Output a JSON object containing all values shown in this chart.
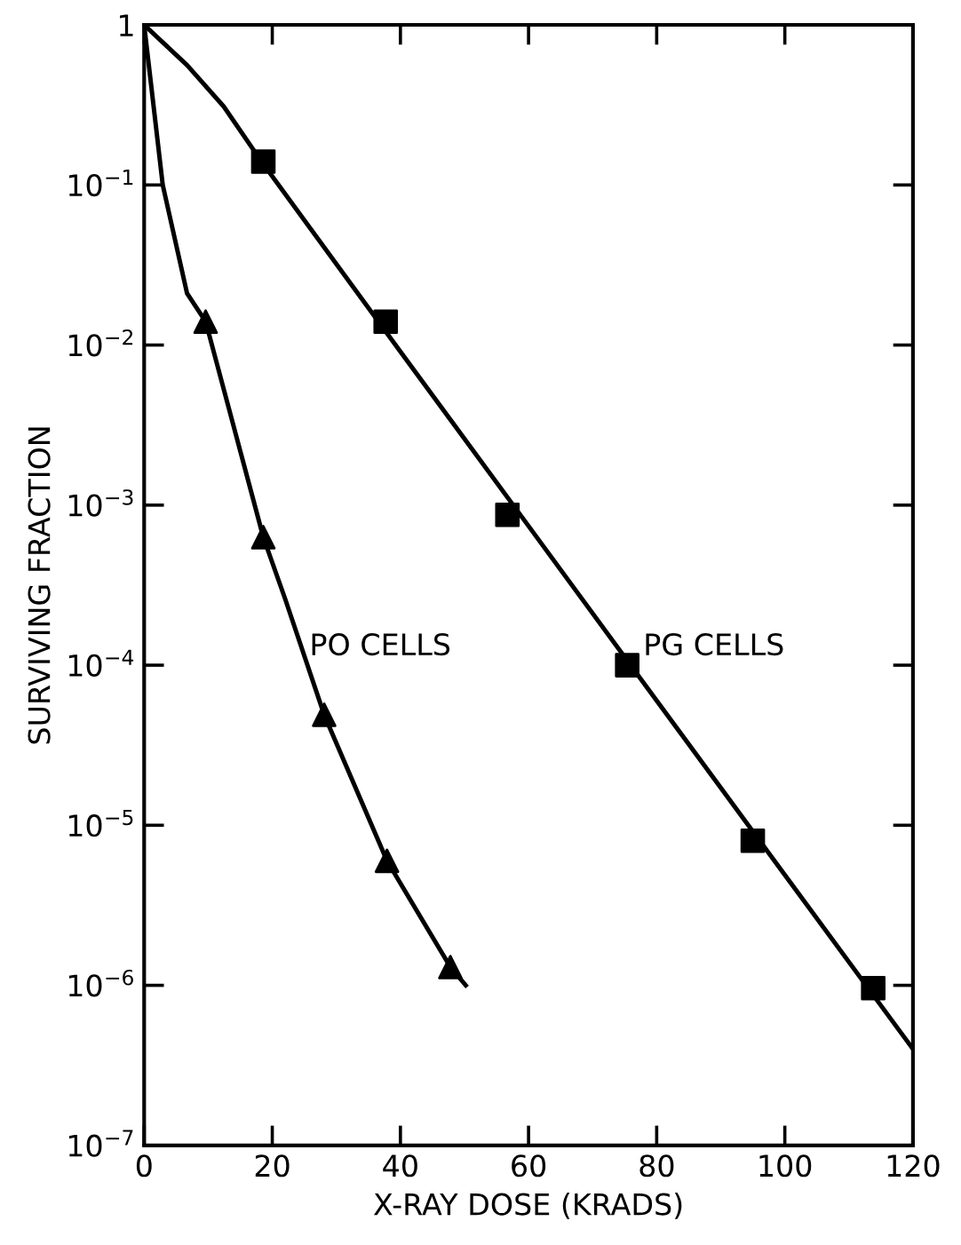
{
  "chart_data": {
    "type": "scatter",
    "xlabel": "X-RAY DOSE (KRADS)",
    "ylabel": "SURVIVING FRACTION",
    "log": "y",
    "xlim": [
      0,
      120
    ],
    "ylim": [
      1e-07,
      1
    ],
    "xticks": [
      0,
      20,
      40,
      60,
      80,
      100,
      120
    ],
    "yticks": [
      {
        "value": 1e-07,
        "label": "10$^{−7}$"
      },
      {
        "value": 1e-06,
        "label": "10$^{−6}$"
      },
      {
        "value": 1e-05,
        "label": "10$^{−5}$"
      },
      {
        "value": 0.0001,
        "label": "10$^{−4}$"
      },
      {
        "value": 0.001,
        "label": "10$^{−3}$"
      },
      {
        "value": 0.01,
        "label": "10$^{−2}$"
      },
      {
        "value": 0.1,
        "label": "10$^{−1}$"
      },
      {
        "value": 1,
        "label": "1"
      }
    ],
    "grid": false,
    "series": [
      {
        "marker": "square",
        "color": "#000000",
        "x": [
          18.6,
          37.7,
          56.7,
          75.4,
          95.0,
          113.8
        ],
        "values": [
          0.14,
          0.014,
          0.00087,
          0.0001,
          8e-06,
          9.6e-07
        ]
      },
      {
        "marker": "triangle",
        "color": "#000000",
        "x": [
          9.6,
          18.6,
          28.1,
          37.9,
          47.8
        ],
        "values": [
          0.014,
          0.00063,
          4.9e-05,
          6e-06,
          1.3e-06
        ]
      },
      {
        "type": "line",
        "marker": "none",
        "line_style": "solid",
        "color": "#000000",
        "x": [
          0,
          6.7,
          12.4,
          18.6,
          40,
          60,
          80,
          100,
          120
        ],
        "values": [
          1,
          0.56,
          0.31,
          0.135,
          0.0091,
          0.00074,
          6e-05,
          4.9e-06,
          4e-07
        ]
      },
      {
        "type": "line",
        "marker": "none",
        "line_style": "solid",
        "color": "#000000",
        "x": [
          0,
          2.9,
          6.7,
          9.6,
          18.6,
          22,
          28.1,
          37.9,
          47.8,
          50.2
        ],
        "values": [
          1,
          0.1,
          0.021,
          0.014,
          0.00063,
          0.00026,
          4.9e-05,
          6e-06,
          1.3e-06,
          1e-06
        ]
      }
    ],
    "annotations": [
      {
        "text": "PO CELLS",
        "x": 25.8,
        "y": 0.00013
      },
      {
        "text": "PG CELLS",
        "x": 77.9,
        "y": 0.00013
      }
    ]
  }
}
